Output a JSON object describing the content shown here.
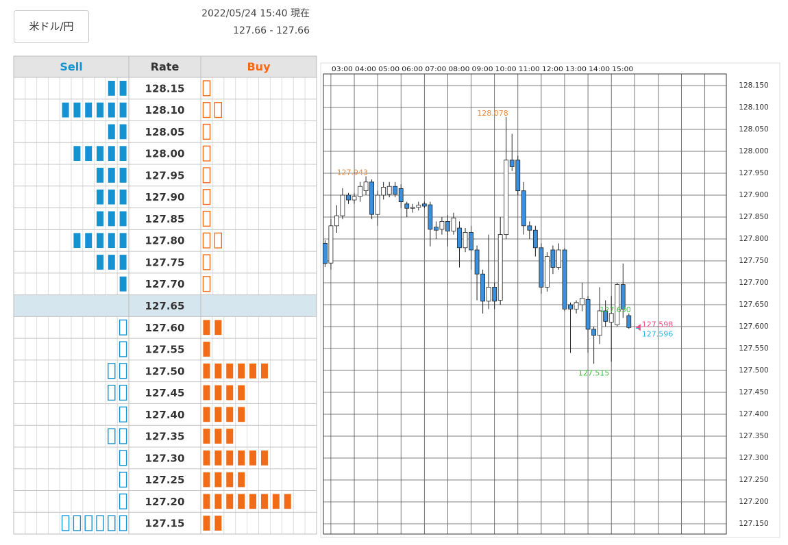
{
  "header": {
    "pair_button": "米ドル/円",
    "timestamp": "2022/05/24 15:40 現在",
    "quote": "127.66 - 127.66"
  },
  "order_book": {
    "columns": [
      "Sell",
      "Rate",
      "Buy"
    ],
    "sell_color": "#1592d1",
    "buy_color": "#f26c17",
    "rows": [
      {
        "rate": "128.15",
        "sell": 2,
        "buy": 1
      },
      {
        "rate": "128.10",
        "sell": 6,
        "buy": 2
      },
      {
        "rate": "128.05",
        "sell": 2,
        "buy": 1
      },
      {
        "rate": "128.00",
        "sell": 5,
        "buy": 1
      },
      {
        "rate": "127.95",
        "sell": 3,
        "buy": 1
      },
      {
        "rate": "127.90",
        "sell": 3,
        "buy": 1
      },
      {
        "rate": "127.85",
        "sell": 3,
        "buy": 1
      },
      {
        "rate": "127.80",
        "sell": 5,
        "buy": 2
      },
      {
        "rate": "127.75",
        "sell": 3,
        "buy": 1
      },
      {
        "rate": "127.70",
        "sell": 1,
        "buy": 1
      },
      {
        "rate": "127.65",
        "highlight": true
      },
      {
        "rate": "127.60",
        "sell": 1,
        "buy": 2
      },
      {
        "rate": "127.55",
        "sell": 1,
        "buy": 1
      },
      {
        "rate": "127.50",
        "sell": 2,
        "buy": 6
      },
      {
        "rate": "127.45",
        "sell": 2,
        "buy": 4
      },
      {
        "rate": "127.40",
        "sell": 1,
        "buy": 4
      },
      {
        "rate": "127.35",
        "sell": 2,
        "buy": 3
      },
      {
        "rate": "127.30",
        "sell": 1,
        "buy": 6
      },
      {
        "rate": "127.25",
        "sell": 1,
        "buy": 4
      },
      {
        "rate": "127.20",
        "sell": 1,
        "buy": 8
      },
      {
        "rate": "127.15",
        "sell": 6,
        "buy": 2
      }
    ]
  },
  "chart_data": {
    "type": "candlestick",
    "up_color": "#ffffff",
    "down_color": "#3b8fdb",
    "grid": true,
    "x": [
      2.75,
      3,
      3.25,
      3.5,
      3.75,
      4,
      4.25,
      4.5,
      4.75,
      5,
      5.25,
      5.5,
      5.75,
      6,
      6.25,
      6.5,
      6.75,
      7,
      7.25,
      7.5,
      7.75,
      8,
      8.25,
      8.5,
      8.75,
      9,
      9.25,
      9.5,
      9.75,
      10,
      10.25,
      10.5,
      10.75,
      11,
      11.25,
      11.5,
      11.75,
      12,
      12.25,
      12.5,
      12.75,
      13,
      13.25,
      13.5,
      13.75,
      14,
      14.25,
      14.5,
      14.75,
      15,
      15.25,
      15.5,
      15.75
    ],
    "open": [
      127.79,
      127.745,
      127.83,
      127.853,
      127.9,
      127.889,
      127.897,
      127.91,
      127.93,
      127.856,
      127.9,
      127.902,
      127.92,
      127.915,
      127.88,
      127.87,
      127.872,
      127.88,
      127.878,
      127.827,
      127.822,
      127.84,
      127.818,
      127.825,
      127.78,
      127.815,
      127.775,
      127.72,
      127.658,
      127.69,
      127.66,
      127.81,
      127.98,
      127.98,
      127.91,
      127.83,
      127.82,
      127.78,
      127.69,
      127.775,
      127.735,
      127.775,
      127.65,
      127.64,
      127.65,
      127.662,
      127.594,
      127.58,
      127.636,
      127.61,
      127.604,
      127.696,
      127.625
    ],
    "high": [
      127.797,
      127.845,
      127.877,
      127.916,
      127.905,
      127.905,
      127.93,
      127.943,
      127.936,
      127.91,
      127.93,
      127.93,
      127.93,
      127.925,
      127.885,
      127.88,
      127.885,
      127.885,
      127.885,
      127.84,
      127.85,
      127.855,
      127.86,
      127.84,
      127.825,
      127.83,
      127.785,
      127.73,
      127.81,
      127.7,
      127.85,
      128.078,
      128.04,
      127.99,
      127.93,
      127.84,
      127.83,
      127.79,
      127.77,
      127.785,
      127.79,
      127.78,
      127.655,
      127.66,
      127.7,
      127.67,
      127.6,
      127.69,
      127.66,
      127.67,
      127.7,
      127.744,
      127.63
    ],
    "low": [
      127.736,
      127.73,
      127.814,
      127.845,
      127.88,
      127.88,
      127.885,
      127.9,
      127.845,
      127.83,
      127.89,
      127.895,
      127.895,
      127.87,
      127.85,
      127.86,
      127.865,
      127.87,
      127.783,
      127.8,
      127.81,
      127.783,
      127.81,
      127.735,
      127.77,
      127.73,
      127.66,
      127.63,
      127.64,
      127.64,
      127.65,
      127.8,
      127.955,
      127.9,
      127.81,
      127.8,
      127.76,
      127.675,
      127.68,
      127.72,
      127.73,
      127.635,
      127.54,
      127.63,
      127.635,
      127.54,
      127.515,
      127.56,
      127.6,
      127.52,
      127.6,
      127.62,
      127.595
    ],
    "close": [
      127.744,
      127.83,
      127.853,
      127.9,
      127.889,
      127.897,
      127.92,
      127.93,
      127.856,
      127.9,
      127.918,
      127.92,
      127.902,
      127.885,
      127.87,
      127.872,
      127.877,
      127.875,
      127.822,
      127.82,
      127.84,
      127.818,
      127.848,
      127.78,
      127.815,
      127.775,
      127.72,
      127.658,
      127.69,
      127.658,
      127.81,
      127.98,
      127.965,
      127.91,
      127.83,
      127.82,
      127.78,
      127.69,
      127.76,
      127.735,
      127.775,
      127.64,
      127.64,
      127.655,
      127.665,
      127.594,
      127.58,
      127.636,
      127.612,
      127.63,
      127.696,
      127.64,
      127.598
    ],
    "xlim": [
      2.68,
      19.92
    ],
    "xticks": [
      {
        "value": 3,
        "label": "03:00"
      },
      {
        "value": 4,
        "label": "04:00"
      },
      {
        "value": 5,
        "label": "05:00"
      },
      {
        "value": 6,
        "label": "06:00"
      },
      {
        "value": 7,
        "label": "07:00"
      },
      {
        "value": 8,
        "label": "08:00"
      },
      {
        "value": 9,
        "label": "09:00"
      },
      {
        "value": 10,
        "label": "10:00"
      },
      {
        "value": 11,
        "label": "11:00"
      },
      {
        "value": 12,
        "label": "12:00"
      },
      {
        "value": 13,
        "label": "13:00"
      },
      {
        "value": 14,
        "label": "14:00"
      },
      {
        "value": 15,
        "label": "15:00"
      },
      {
        "value": 16,
        "label": null
      },
      {
        "value": 17,
        "label": null
      },
      {
        "value": 18,
        "label": null
      },
      {
        "value": 19,
        "label": null
      }
    ],
    "ylim": [
      127.1266,
      128.1766
    ],
    "yticks": [
      {
        "value": 128.15,
        "label": "128.150"
      },
      {
        "value": 128.1,
        "label": "128.100"
      },
      {
        "value": 128.05,
        "label": "128.050"
      },
      {
        "value": 128.0,
        "label": "128.000"
      },
      {
        "value": 127.95,
        "label": "127.950"
      },
      {
        "value": 127.9,
        "label": "127.900"
      },
      {
        "value": 127.85,
        "label": "127.850"
      },
      {
        "value": 127.8,
        "label": "127.800"
      },
      {
        "value": 127.75,
        "label": "127.750"
      },
      {
        "value": 127.7,
        "label": "127.700"
      },
      {
        "value": 127.65,
        "label": "127.650"
      },
      {
        "value": 127.6,
        "label": "127.600"
      },
      {
        "value": 127.55,
        "label": "127.550"
      },
      {
        "value": 127.5,
        "label": "127.500"
      },
      {
        "value": 127.45,
        "label": "127.450"
      },
      {
        "value": 127.4,
        "label": "127.400"
      },
      {
        "value": 127.35,
        "label": "127.350"
      },
      {
        "value": 127.3,
        "label": "127.300"
      },
      {
        "value": 127.25,
        "label": "127.250"
      },
      {
        "value": 127.2,
        "label": "127.200"
      },
      {
        "value": 127.15,
        "label": "127.150"
      }
    ],
    "annotations": [
      {
        "value": 127.943,
        "label": "127.943",
        "color": "#f08a3c"
      },
      {
        "value": 128.078,
        "label": "128.078",
        "color": "#f08a3c"
      },
      {
        "value": 127.63,
        "label": "127.630",
        "color": "#3cc43c"
      },
      {
        "value": 127.515,
        "label": "127.515",
        "color": "#3cc43c"
      }
    ],
    "price_markers": [
      {
        "value": 127.598,
        "label": "127.598",
        "color": "#ee4b82"
      },
      {
        "value": 127.596,
        "label": "127.596",
        "color": "#2cb6e6"
      }
    ]
  }
}
